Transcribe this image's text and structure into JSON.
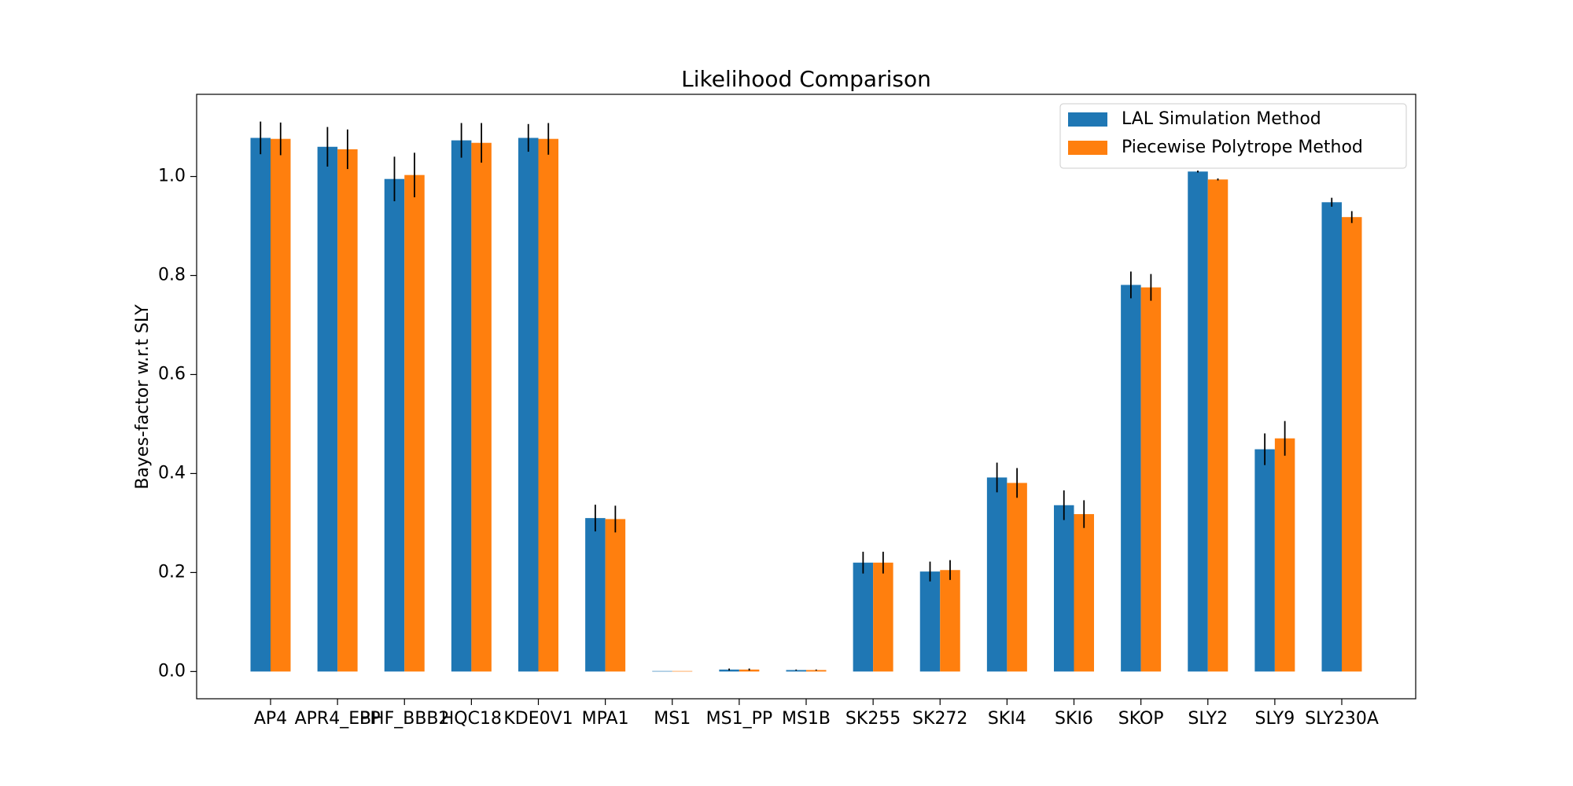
{
  "chart_data": {
    "type": "bar",
    "title": "Likelihood Comparison",
    "y_label": "Bayes-factor w.r.t SLY",
    "categories": [
      "AP4",
      "APR4_EPP",
      "BHF_BBB2",
      "HQC18",
      "KDE0V1",
      "MPA1",
      "MS1",
      "MS1_PP",
      "MS1B",
      "SK255",
      "SK272",
      "SKI4",
      "SKI6",
      "SKOP",
      "SLY2",
      "SLY9",
      "SLY230A"
    ],
    "series": [
      {
        "name": "LAL Simulation Method",
        "color": "#1f77b4",
        "values": [
          1.078,
          1.06,
          0.995,
          1.073,
          1.078,
          0.31,
          0.001,
          0.004,
          0.003,
          0.22,
          0.202,
          0.392,
          0.336,
          0.781,
          1.01,
          0.449,
          0.948
        ],
        "errors": [
          0.033,
          0.04,
          0.045,
          0.035,
          0.028,
          0.027,
          0,
          0.002,
          0.001,
          0.022,
          0.02,
          0.03,
          0.03,
          0.027,
          0.002,
          0.032,
          0.009
        ]
      },
      {
        "name": "Piecewise Polytrope Method",
        "color": "#ff7f0e",
        "values": [
          1.076,
          1.055,
          1.003,
          1.068,
          1.076,
          0.308,
          0.001,
          0.004,
          0.003,
          0.22,
          0.205,
          0.381,
          0.318,
          0.776,
          0.994,
          0.471,
          0.918
        ],
        "errors": [
          0.033,
          0.04,
          0.045,
          0.04,
          0.032,
          0.027,
          0,
          0.002,
          0.001,
          0.022,
          0.02,
          0.03,
          0.028,
          0.027,
          0.002,
          0.035,
          0.012
        ]
      }
    ],
    "ylim": [
      -0.055,
      1.166
    ],
    "yticks": [
      {
        "value": 0,
        "label": "0.0"
      },
      {
        "value": 0.2,
        "label": "0.2"
      },
      {
        "value": 0.4,
        "label": "0.4"
      },
      {
        "value": 0.6,
        "label": "0.6"
      },
      {
        "value": 0.8,
        "label": "0.8"
      },
      {
        "value": 1,
        "label": "1.0"
      }
    ],
    "legend": "upper right",
    "grid": false
  }
}
